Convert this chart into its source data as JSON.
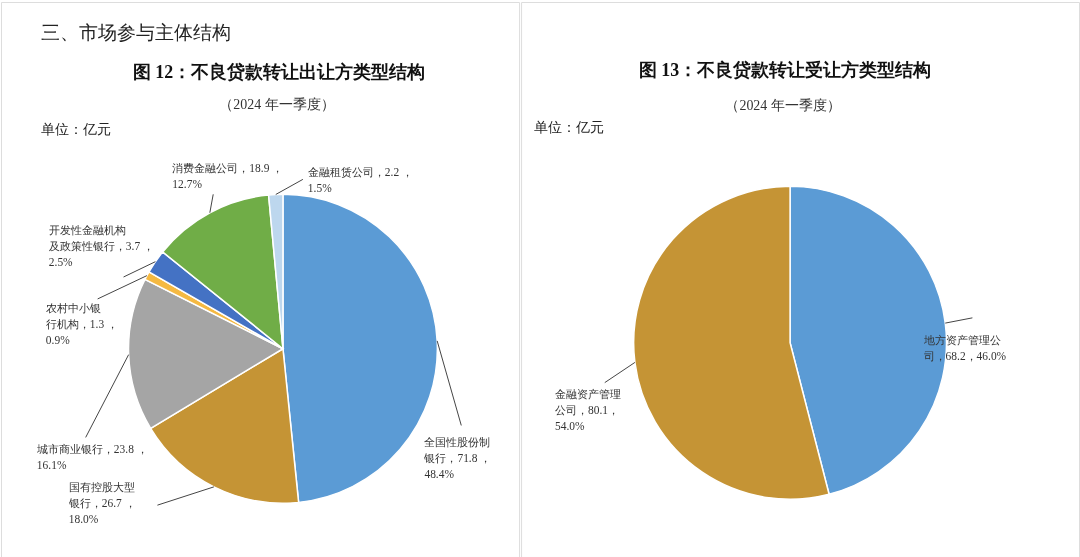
{
  "chart_data": [
    {
      "type": "pie",
      "title": "图 12：不良贷款转让出让方类型结构",
      "subtitle": "（2024 年一季度）",
      "annotations": [
        "三、市场参与主体结构",
        "单位：亿元"
      ],
      "categories": [
        "全国性股份制银行",
        "国有控股大型银行",
        "城市商业银行",
        "农村中小银行机构",
        "开发性金融机构及政策性银行",
        "消费金融公司",
        "金融租赁公司"
      ],
      "values": [
        71.8,
        26.7,
        23.8,
        1.3,
        3.7,
        18.9,
        2.2
      ],
      "colors": [
        "#5b9bd5",
        "#c59435",
        "#a5a5a5",
        "#f5b942",
        "#4472c4",
        "#70ad47",
        "#bdd7ee"
      ],
      "value_labels": [
        "71.8 ， 48.4%",
        "26.7 ， 18.0%",
        "23.8 ， 16.1%",
        "1.3 ， 0.9%",
        "3.7 ， 2.5%",
        "18.9 ， 12.7%",
        "2.2 ， 1.5%"
      ]
    },
    {
      "type": "pie",
      "title": "图 13：不良贷款转让受让方类型结构",
      "subtitle": "（2024 年一季度）",
      "annotations": [
        "单位：亿元"
      ],
      "categories": [
        "地方资产管理公司",
        "金融资产管理公司"
      ],
      "values": [
        68.2,
        80.1
      ],
      "colors": [
        "#5b9bd5",
        "#c59435"
      ],
      "value_labels": [
        "68.2，46.0%",
        "80.1，54.0%"
      ]
    }
  ]
}
